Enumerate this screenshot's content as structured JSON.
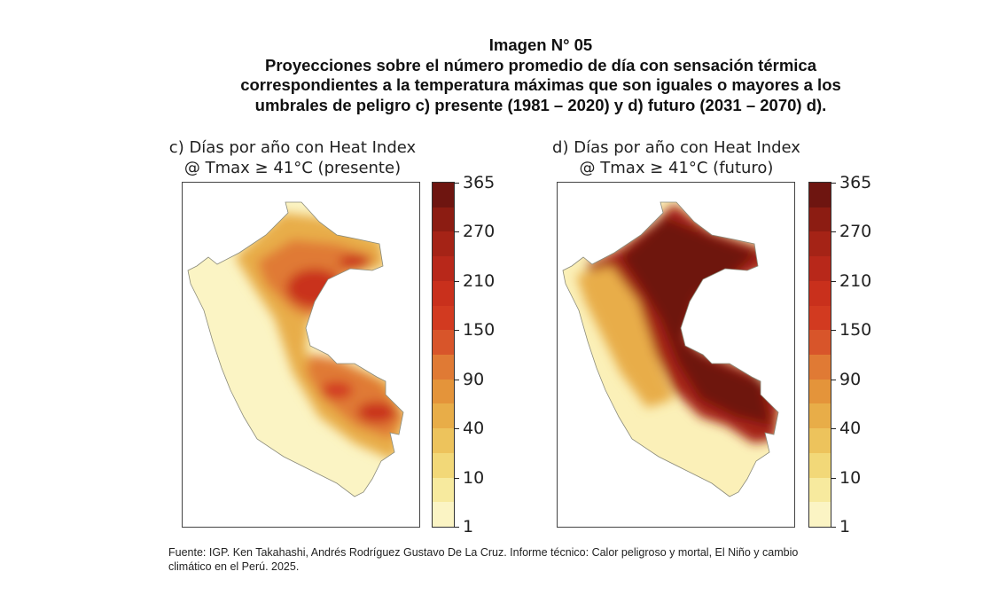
{
  "figure": {
    "title_lines": [
      "Imagen N° 05",
      "Proyecciones sobre el número promedio de día con sensación térmica",
      "correspondientes a la temperatura máximas que son iguales o mayores a los",
      "umbrales de peligro c) presente (1981 – 2020) y d) futuro (2031 – 2070) d)."
    ],
    "panels": [
      {
        "title_line1": "c) Días por año con Heat Index",
        "title_line2": "@ Tmax ≥ 41°C (presente)"
      },
      {
        "title_line1": "d) Días por año con Heat Index",
        "title_line2": "@ Tmax ≥ 41°C (futuro)"
      }
    ],
    "colorbar": {
      "ticks": [
        "365",
        "270",
        "210",
        "150",
        "90",
        "40",
        "10",
        "1"
      ],
      "colors": [
        "#6e1510",
        "#8c1c12",
        "#a52316",
        "#b8281a",
        "#c9301c",
        "#d23a20",
        "#d8552a",
        "#e07a34",
        "#e4943a",
        "#e8ad48",
        "#edc35c",
        "#f2d878",
        "#f7ea9e",
        "#fbf4c4"
      ]
    },
    "source_line1": "Fuente: IGP. Ken Takahashi, Andrés Rodríguez Gustavo De La Cruz. Informe técnico: Calor peligroso y mortal, El Niño y cambio",
    "source_line2": "climático en el Perú. 2025."
  }
}
